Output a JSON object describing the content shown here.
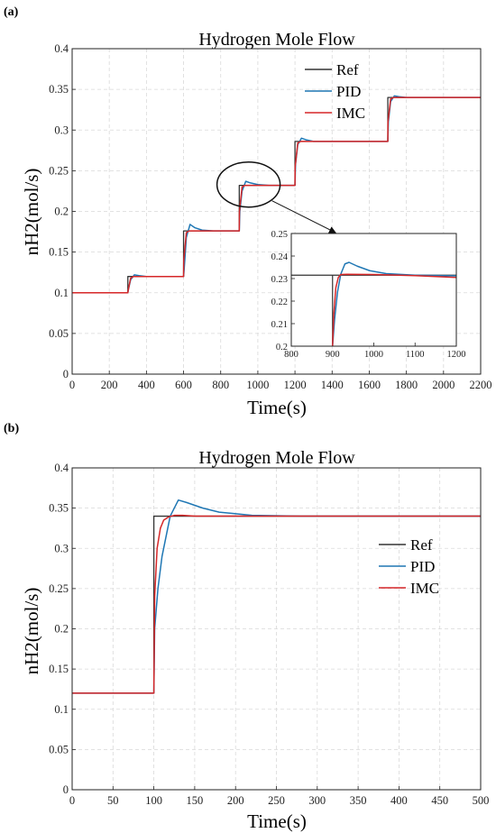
{
  "colors": {
    "Ref": "#333333",
    "PID": "#1f77b4",
    "IMC": "#d62728"
  },
  "chart_data": [
    {
      "panel": "(a)",
      "type": "line",
      "title": "Hydrogen Mole Flow",
      "xlabel": "Time(s)",
      "ylabel": "nH2(mol/s)",
      "xlim": [
        0,
        2200
      ],
      "ylim": [
        0,
        0.4
      ],
      "xticks": [
        0,
        200,
        400,
        600,
        800,
        1000,
        1200,
        1400,
        1600,
        1800,
        2000,
        2200
      ],
      "yticks": [
        0,
        0.05,
        0.1,
        0.15,
        0.2,
        0.25,
        0.3,
        0.35,
        0.4
      ],
      "grid": true,
      "legend": "top-right",
      "series": [
        {
          "name": "Ref",
          "color": "#333333",
          "x": [
            0,
            300,
            300,
            600,
            600,
            900,
            900,
            1200,
            1200,
            1700,
            1700,
            2200
          ],
          "y": [
            0.1,
            0.1,
            0.12,
            0.12,
            0.176,
            0.176,
            0.232,
            0.232,
            0.286,
            0.286,
            0.34,
            0.34
          ]
        },
        {
          "name": "PID",
          "color": "#1f77b4",
          "x": [
            0,
            300,
            303,
            315,
            335,
            360,
            400,
            600,
            603,
            615,
            635,
            660,
            700,
            760,
            900,
            903,
            915,
            935,
            960,
            1000,
            1060,
            1200,
            1203,
            1215,
            1235,
            1260,
            1300,
            1700,
            1703,
            1715,
            1735,
            1760,
            1800,
            2200
          ],
          "y": [
            0.1,
            0.1,
            0.104,
            0.116,
            0.122,
            0.121,
            0.12,
            0.12,
            0.128,
            0.168,
            0.184,
            0.18,
            0.177,
            0.176,
            0.176,
            0.2,
            0.225,
            0.237,
            0.235,
            0.233,
            0.232,
            0.232,
            0.258,
            0.282,
            0.29,
            0.288,
            0.286,
            0.286,
            0.31,
            0.335,
            0.342,
            0.341,
            0.34,
            0.34
          ]
        },
        {
          "name": "IMC",
          "color": "#d62728",
          "x": [
            0,
            300,
            301,
            315,
            330,
            600,
            601,
            615,
            630,
            900,
            901,
            915,
            930,
            1200,
            1201,
            1215,
            1230,
            1700,
            1701,
            1715,
            1730,
            2200
          ],
          "y": [
            0.1,
            0.1,
            0.102,
            0.118,
            0.12,
            0.12,
            0.14,
            0.174,
            0.176,
            0.176,
            0.2,
            0.23,
            0.232,
            0.232,
            0.255,
            0.284,
            0.286,
            0.286,
            0.31,
            0.338,
            0.34,
            0.34
          ]
        }
      ],
      "inset": {
        "xlim": [
          800,
          1200
        ],
        "ylim": [
          0.2,
          0.25
        ],
        "xticks": [
          800,
          900,
          1000,
          1100,
          1200
        ],
        "yticks": [
          0.2,
          0.21,
          0.22,
          0.23,
          0.24,
          0.25
        ],
        "series": [
          {
            "name": "Ref",
            "color": "#333333",
            "x": [
              800,
              900,
              900,
              1200
            ],
            "y": [
              0.2315,
              0.2315,
              0.2315,
              0.2315
            ]
          },
          {
            "name": "PID",
            "color": "#1f77b4",
            "x": [
              900,
              905,
              912,
              920,
              930,
              940,
              960,
              990,
              1030,
              1100,
              1200
            ],
            "y": [
              0.2,
              0.212,
              0.224,
              0.232,
              0.2365,
              0.2372,
              0.2355,
              0.2335,
              0.2322,
              0.2315,
              0.2312
            ]
          },
          {
            "name": "IMC",
            "color": "#d62728",
            "x": [
              900,
              903,
              908,
              914,
              920,
              935,
              1000,
              1100,
              1200
            ],
            "y": [
              0.2,
              0.214,
              0.226,
              0.2305,
              0.2318,
              0.2319,
              0.2318,
              0.2313,
              0.2305
            ]
          }
        ]
      }
    },
    {
      "panel": "(b)",
      "type": "line",
      "title": "Hydrogen Mole Flow",
      "xlabel": "Time(s)",
      "ylabel": "nH2(mol/s)",
      "xlim": [
        0,
        500
      ],
      "ylim": [
        0,
        0.4
      ],
      "xticks": [
        0,
        50,
        100,
        150,
        200,
        250,
        300,
        350,
        400,
        450,
        500
      ],
      "yticks": [
        0,
        0.05,
        0.1,
        0.15,
        0.2,
        0.25,
        0.3,
        0.35,
        0.4
      ],
      "grid": true,
      "legend": "right",
      "series": [
        {
          "name": "Ref",
          "color": "#333333",
          "x": [
            0,
            100,
            100,
            500
          ],
          "y": [
            0.12,
            0.12,
            0.34,
            0.34
          ]
        },
        {
          "name": "PID",
          "color": "#1f77b4",
          "x": [
            0,
            100,
            101,
            105,
            110,
            120,
            130,
            140,
            160,
            180,
            220,
            280,
            500
          ],
          "y": [
            0.12,
            0.12,
            0.2,
            0.25,
            0.29,
            0.34,
            0.36,
            0.357,
            0.35,
            0.345,
            0.341,
            0.34,
            0.34
          ]
        },
        {
          "name": "IMC",
          "color": "#d62728",
          "x": [
            0,
            100,
            101,
            104,
            108,
            112,
            118,
            125,
            135,
            150,
            500
          ],
          "y": [
            0.12,
            0.12,
            0.24,
            0.3,
            0.325,
            0.335,
            0.339,
            0.341,
            0.341,
            0.34,
            0.34
          ]
        }
      ]
    }
  ]
}
